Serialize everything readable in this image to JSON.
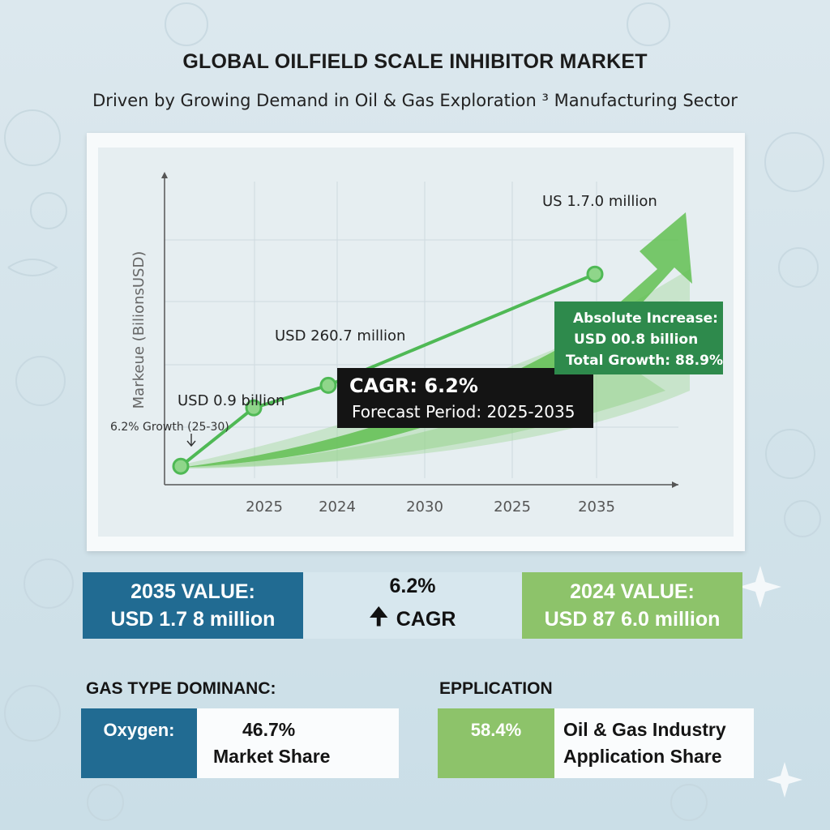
{
  "header": {
    "title": "GLOBAL OILFIELD SCALE INHIBITOR MARKET",
    "subtitle": "Driven by Growing Demand in Oil & Gas Exploration ³ Manufacturing Sector"
  },
  "colors": {
    "line": "#4fb955",
    "area": "#8fd083",
    "arrow": "#62bf52",
    "dark_label_bg": "#141414",
    "green_box_bg": "#2e8a4c",
    "stat_blue": "#216b92",
    "stat_green": "#8dc36a"
  },
  "chart_data": {
    "type": "line",
    "ylabel": "Markeue (BilionsUSD)",
    "categories": [
      "2025",
      "2024",
      "2030",
      "2025",
      "2035"
    ],
    "series": [
      {
        "values": [
          0.07,
          0.9,
          1.22,
          null,
          2.8
        ]
      }
    ],
    "ylim": [
      -0.1,
      4.0
    ],
    "grid": true,
    "annotations": {
      "point_labels": [
        "USD 0.9 billion",
        "USD 260.7 million",
        "US 1.7.0 million"
      ],
      "growth_note": "6.2% Growth (25-30)",
      "cagr_title": "CAGR: 6.2%",
      "cagr_period": "Forecast Period: 2025-2035",
      "increase_lines": [
        "Absolute Increase:",
        "USD 00.8 billion",
        "Total Growth: 88.9%"
      ]
    }
  },
  "stats": {
    "left": {
      "line1": "2035 VALUE:",
      "line2": "USD 1.7 8  million"
    },
    "middle": {
      "arrow_icon": "arrow-up",
      "line1": "6.2%",
      "line2": "CAGR"
    },
    "right": {
      "line1": "2024 VALUE:",
      "line2": "USD 87  6.0 million"
    }
  },
  "gas_type": {
    "heading": "GAS TYPE DOMINANC:",
    "label": "Oxygen:",
    "value": "46.7%",
    "caption": "Market Share"
  },
  "application": {
    "heading": "EPPLICATION",
    "value": "58.4%",
    "line1": "Oil & Gas Industry",
    "line2": "Application Share"
  }
}
